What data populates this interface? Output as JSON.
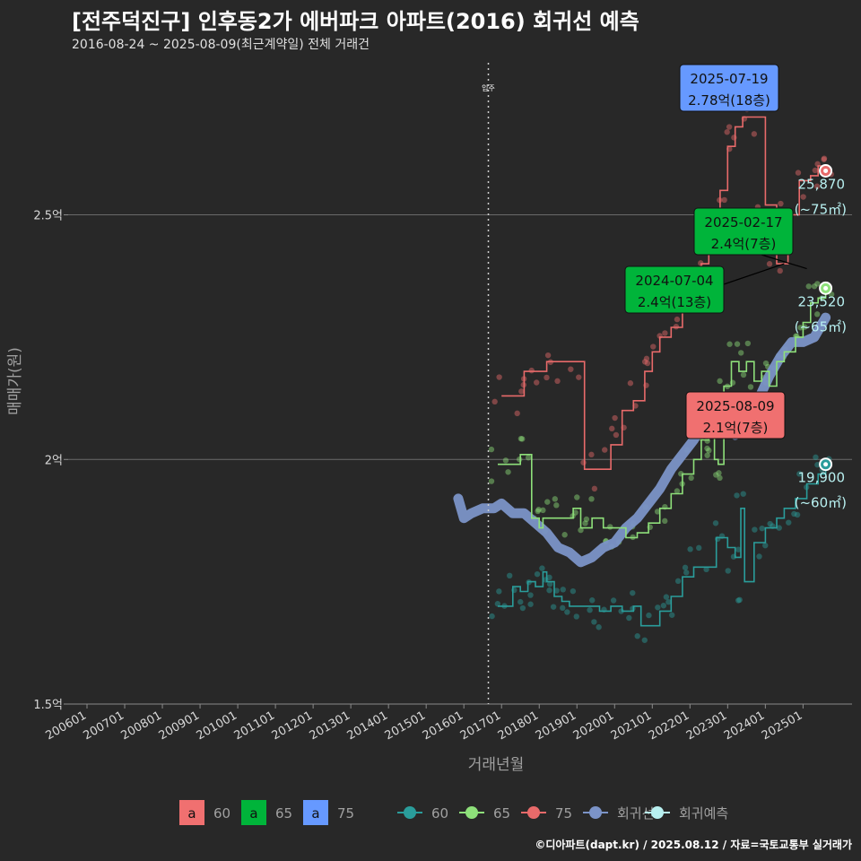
{
  "header": {
    "title": "[전주덕진구] 인후동2가 에버파크 아파트(2016) 회귀선 예측",
    "subtitle": "2016-08-24 ~ 2025-08-09(최근계약일) 전체 거래건"
  },
  "caption": "©디아파트(dapt.kr) / 2025.08.12 / 자료=국토교통부 실거래가",
  "colors": {
    "background": "#282828",
    "area_60": "#2a9d9b",
    "area_65": "#8ee07a",
    "area_75": "#e86a6a",
    "regression": "#7b93c7",
    "forecast": "#b8f0f0",
    "label_60": "#f07070",
    "label_65": "#00b43a",
    "label_75": "#6699ff"
  },
  "chart_data": {
    "type": "line",
    "xlabel": "거래년월",
    "ylabel": "매매가(원)",
    "x_ticks": [
      "200601",
      "200701",
      "200801",
      "200901",
      "201001",
      "201101",
      "201201",
      "201301",
      "201401",
      "201501",
      "201601",
      "201701",
      "201801",
      "201901",
      "202001",
      "202101",
      "202201",
      "202301",
      "202401",
      "202501"
    ],
    "y_ticks": [
      {
        "value": 1.5,
        "label": "1.5억"
      },
      {
        "value": 2.0,
        "label": "2억"
      },
      {
        "value": 2.5,
        "label": "2.5억"
      }
    ],
    "ylim": [
      1.5,
      2.82
    ],
    "xlim": [
      2005.5,
      2026.3
    ],
    "move_in": {
      "x": 2016.65,
      "label": "입주"
    },
    "series": [
      {
        "name": "60",
        "color": "#2a9d9b",
        "points": [
          [
            2016.9,
            1.7
          ],
          [
            2017.1,
            1.7
          ],
          [
            2017.3,
            1.74
          ],
          [
            2017.5,
            1.73
          ],
          [
            2017.7,
            1.75
          ],
          [
            2017.9,
            1.74
          ],
          [
            2018.1,
            1.77
          ],
          [
            2018.2,
            1.75
          ],
          [
            2018.4,
            1.72
          ],
          [
            2018.6,
            1.71
          ],
          [
            2018.8,
            1.7
          ],
          [
            2019.0,
            1.7
          ],
          [
            2019.3,
            1.7
          ],
          [
            2019.6,
            1.69
          ],
          [
            2019.9,
            1.7
          ],
          [
            2020.2,
            1.69
          ],
          [
            2020.5,
            1.7
          ],
          [
            2020.7,
            1.66
          ],
          [
            2021.0,
            1.66
          ],
          [
            2021.2,
            1.69
          ],
          [
            2021.5,
            1.72
          ],
          [
            2021.8,
            1.76
          ],
          [
            2022.1,
            1.78
          ],
          [
            2022.4,
            1.78
          ],
          [
            2022.7,
            1.84
          ],
          [
            2023.0,
            1.82
          ],
          [
            2023.2,
            1.8
          ],
          [
            2023.35,
            1.9
          ],
          [
            2023.45,
            1.75
          ],
          [
            2023.7,
            1.83
          ],
          [
            2024.0,
            1.86
          ],
          [
            2024.3,
            1.88
          ],
          [
            2024.5,
            1.9
          ],
          [
            2024.8,
            1.92
          ],
          [
            2025.1,
            1.95
          ],
          [
            2025.4,
            1.97
          ],
          [
            2025.6,
            1.99
          ]
        ],
        "end_value": 1.99,
        "end_label": "19,900",
        "end_area": "(~60㎡)"
      },
      {
        "name": "65",
        "color": "#8ee07a",
        "points": [
          [
            2016.9,
            1.99
          ],
          [
            2017.3,
            1.99
          ],
          [
            2017.5,
            2.01
          ],
          [
            2017.7,
            2.01
          ],
          [
            2017.8,
            1.88
          ],
          [
            2018.0,
            1.86
          ],
          [
            2018.1,
            1.88
          ],
          [
            2018.4,
            1.88
          ],
          [
            2018.7,
            1.88
          ],
          [
            2018.9,
            1.9
          ],
          [
            2019.1,
            1.86
          ],
          [
            2019.4,
            1.88
          ],
          [
            2019.7,
            1.86
          ],
          [
            2020.0,
            1.86
          ],
          [
            2020.3,
            1.84
          ],
          [
            2020.6,
            1.85
          ],
          [
            2020.9,
            1.87
          ],
          [
            2021.2,
            1.9
          ],
          [
            2021.5,
            1.93
          ],
          [
            2021.8,
            1.97
          ],
          [
            2022.1,
            2.0
          ],
          [
            2022.3,
            2.04
          ],
          [
            2022.5,
            2.06
          ],
          [
            2022.65,
            2.0
          ],
          [
            2022.75,
            1.99
          ],
          [
            2022.9,
            2.15
          ],
          [
            2023.1,
            2.2
          ],
          [
            2023.3,
            2.18
          ],
          [
            2023.5,
            2.2
          ],
          [
            2023.7,
            2.16
          ],
          [
            2023.9,
            2.18
          ],
          [
            2024.1,
            2.15
          ],
          [
            2024.3,
            2.2
          ],
          [
            2024.5,
            2.22
          ],
          [
            2024.8,
            2.25
          ],
          [
            2025.0,
            2.28
          ],
          [
            2025.2,
            2.32
          ],
          [
            2025.4,
            2.33
          ],
          [
            2025.6,
            2.35
          ]
        ],
        "end_value": 2.35,
        "end_label": "23,520",
        "end_area": "(~65㎡)"
      },
      {
        "name": "75",
        "color": "#e86a6a",
        "points": [
          [
            2017.0,
            2.13
          ],
          [
            2017.4,
            2.13
          ],
          [
            2017.6,
            2.18
          ],
          [
            2017.9,
            2.18
          ],
          [
            2018.2,
            2.2
          ],
          [
            2018.5,
            2.2
          ],
          [
            2019.0,
            2.2
          ],
          [
            2019.2,
            1.98
          ],
          [
            2019.6,
            1.98
          ],
          [
            2019.9,
            2.03
          ],
          [
            2020.2,
            2.1
          ],
          [
            2020.5,
            2.12
          ],
          [
            2020.8,
            2.18
          ],
          [
            2021.0,
            2.22
          ],
          [
            2021.2,
            2.25
          ],
          [
            2021.5,
            2.27
          ],
          [
            2021.8,
            2.3
          ],
          [
            2022.0,
            2.35
          ],
          [
            2022.3,
            2.4
          ],
          [
            2022.5,
            2.45
          ],
          [
            2022.8,
            2.55
          ],
          [
            2023.0,
            2.64
          ],
          [
            2023.2,
            2.68
          ],
          [
            2023.4,
            2.7
          ],
          [
            2023.6,
            2.7
          ],
          [
            2024.0,
            2.52
          ],
          [
            2024.3,
            2.4
          ],
          [
            2024.6,
            2.5
          ],
          [
            2024.9,
            2.57
          ],
          [
            2025.2,
            2.58
          ],
          [
            2025.4,
            2.6
          ],
          [
            2025.6,
            2.59
          ]
        ],
        "end_value": 2.59,
        "end_label": "25,870",
        "end_area": "(~75㎡)"
      }
    ],
    "regression": {
      "name": "회귀선",
      "color": "#7b93c7",
      "points": [
        [
          2015.85,
          1.92
        ],
        [
          2016.0,
          1.88
        ],
        [
          2016.2,
          1.89
        ],
        [
          2016.5,
          1.9
        ],
        [
          2016.8,
          1.9
        ],
        [
          2017.0,
          1.91
        ],
        [
          2017.3,
          1.89
        ],
        [
          2017.6,
          1.89
        ],
        [
          2017.9,
          1.87
        ],
        [
          2018.2,
          1.85
        ],
        [
          2018.5,
          1.82
        ],
        [
          2018.8,
          1.81
        ],
        [
          2019.1,
          1.79
        ],
        [
          2019.4,
          1.8
        ],
        [
          2019.7,
          1.82
        ],
        [
          2020.0,
          1.83
        ],
        [
          2020.3,
          1.86
        ],
        [
          2020.6,
          1.88
        ],
        [
          2020.9,
          1.91
        ],
        [
          2021.2,
          1.94
        ],
        [
          2021.5,
          1.98
        ],
        [
          2021.8,
          2.01
        ],
        [
          2022.1,
          2.04
        ],
        [
          2022.4,
          2.08
        ],
        [
          2022.7,
          2.1
        ],
        [
          2023.0,
          2.08
        ],
        [
          2023.2,
          2.05
        ],
        [
          2023.5,
          2.08
        ],
        [
          2023.8,
          2.12
        ],
        [
          2024.1,
          2.17
        ],
        [
          2024.4,
          2.21
        ],
        [
          2024.7,
          2.24
        ],
        [
          2025.0,
          2.24
        ],
        [
          2025.3,
          2.25
        ],
        [
          2025.6,
          2.29
        ]
      ]
    },
    "forecast_name": "회귀예측",
    "annotations": [
      {
        "date": "2025-07-19",
        "value": "2.78억(18층)",
        "color": "#6699ff",
        "point": [
          2025.55,
          2.78
        ]
      },
      {
        "date": "2025-02-17",
        "value": "2.4억(7층)",
        "color": "#00b43a",
        "point": [
          2025.1,
          2.39
        ]
      },
      {
        "date": "2024-07-04",
        "value": "2.4억(13층)",
        "color": "#00b43a",
        "point": [
          2024.5,
          2.4
        ]
      },
      {
        "date": "2025-08-09",
        "value": "2.1억(7층)",
        "color": "#f07070",
        "point": [
          2025.6,
          2.1
        ]
      }
    ],
    "legend": {
      "placement": "bottom",
      "fill_items": [
        {
          "glyph": "a",
          "label": "60",
          "color": "#f07070"
        },
        {
          "glyph": "a",
          "label": "65",
          "color": "#00b43a"
        },
        {
          "glyph": "a",
          "label": "75",
          "color": "#6699ff"
        }
      ],
      "line_items": [
        {
          "label": "60",
          "color": "#2a9d9b"
        },
        {
          "label": "65",
          "color": "#8ee07a"
        },
        {
          "label": "75",
          "color": "#e86a6a"
        },
        {
          "label": "회귀선",
          "color": "#7b93c7"
        },
        {
          "label": "회귀예측",
          "color": "#b8f0f0"
        }
      ]
    }
  }
}
